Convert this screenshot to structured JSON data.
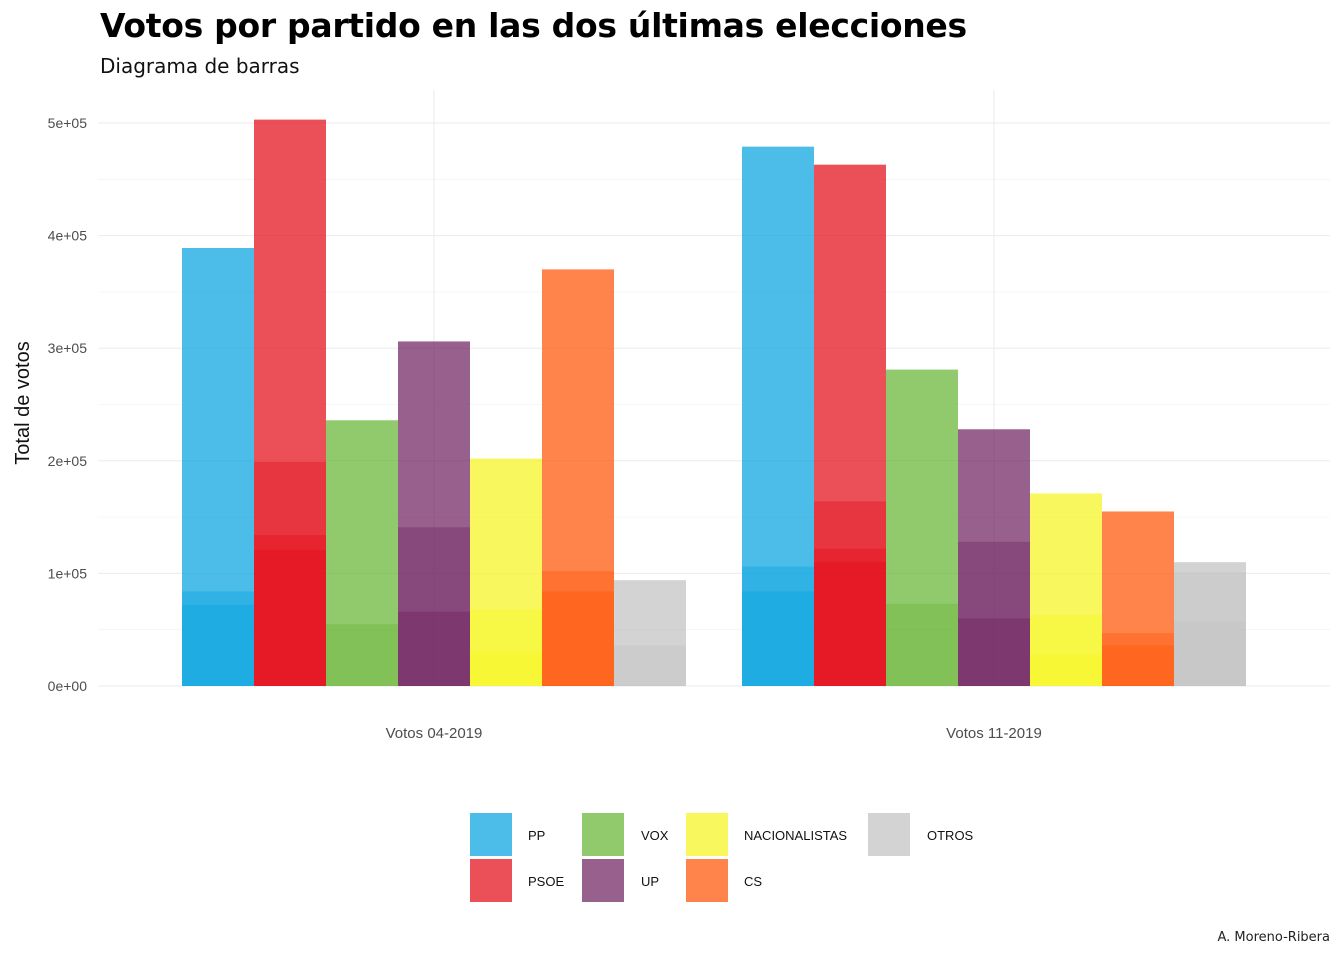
{
  "title": "Votos por partido en las dos últimas elecciones",
  "subtitle": "Diagrama de barras",
  "caption": "A. Moreno-Ribera",
  "chart_data": {
    "type": "bar",
    "title": "Votos por partido en las dos últimas elecciones",
    "subtitle": "Diagrama de barras",
    "xlabel": "",
    "ylabel": "Total de votos",
    "ylim": [
      0,
      500000
    ],
    "yticks": [
      "0e+00",
      "1e+05",
      "2e+05",
      "3e+05",
      "4e+05",
      "5e+05"
    ],
    "grid": true,
    "legend_position": "bottom",
    "categories": [
      "Votos 04-2019",
      "Votos 11-2019"
    ],
    "series": [
      {
        "name": "PP",
        "color": "#00a0e0",
        "values": [
          389000,
          479000
        ],
        "inner": [
          [
            84000,
            72000
          ],
          [
            106000,
            84000
          ]
        ]
      },
      {
        "name": "PSOE",
        "color": "#e30613",
        "values": [
          503000,
          463000
        ],
        "inner": [
          [
            199000,
            134000,
            121000
          ],
          [
            164000,
            122000,
            110000
          ]
        ]
      },
      {
        "name": "VOX",
        "color": "#63b22f",
        "values": [
          236000,
          281000
        ],
        "inner": [
          [
            55000
          ],
          [
            73000
          ]
        ]
      },
      {
        "name": "UP",
        "color": "#6b1d5c",
        "values": [
          306000,
          228000
        ],
        "inner": [
          [
            141000,
            66000
          ],
          [
            128000,
            60000
          ]
        ]
      },
      {
        "name": "NACIONALISTAS",
        "color": "#f5f51a",
        "values": [
          202000,
          171000
        ],
        "inner": [
          [
            68000,
            30000
          ],
          [
            63000,
            28000
          ]
        ]
      },
      {
        "name": "CS",
        "color": "#ff5000",
        "values": [
          370000,
          155000
        ],
        "inner": [
          [
            102000,
            84000
          ],
          [
            47000,
            36000
          ]
        ]
      },
      {
        "name": "OTROS",
        "color": "#c0c0c0",
        "values": [
          94000,
          110000
        ],
        "inner": [
          [
            36000
          ],
          [
            101000,
            57000
          ]
        ]
      }
    ]
  }
}
